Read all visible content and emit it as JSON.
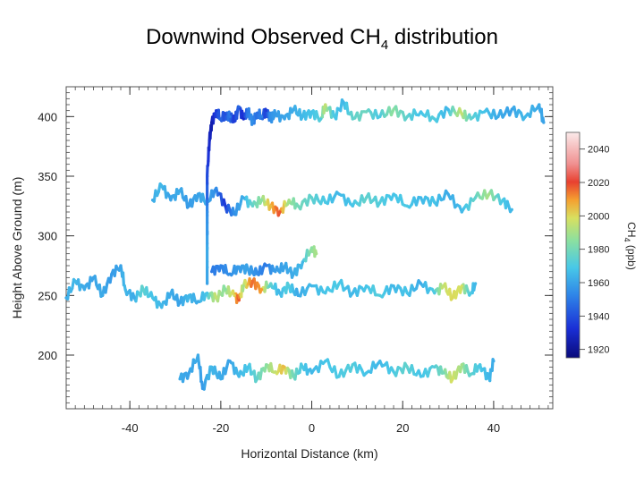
{
  "slide": {
    "title_main": "Downwind Observed CH",
    "title_sub": "4",
    "title_tail": " distribution"
  },
  "chart_data": {
    "type": "scatter",
    "title": "Downwind Observed CH4 distribution",
    "xlabel": "Horizontal Distance (km)",
    "ylabel": "Height Above Ground (m)",
    "xlim": [
      -54,
      53
    ],
    "ylim": [
      155,
      425
    ],
    "xticks": [
      -40,
      -20,
      0,
      20,
      40
    ],
    "yticks": [
      200,
      250,
      300,
      350,
      400
    ],
    "colorbar": {
      "label_main": "CH",
      "label_sub": "4",
      "label_tail": " (ppb)",
      "range": [
        1915,
        2050
      ],
      "ticks": [
        1920,
        1940,
        1960,
        1980,
        2000,
        2020,
        2040
      ]
    },
    "series": [
      {
        "name": "transect ~400 m",
        "points": [
          {
            "x": -22,
            "y": 395,
            "ch4": 1925
          },
          {
            "x": -21,
            "y": 405,
            "ch4": 1935
          },
          {
            "x": -20,
            "y": 398,
            "ch4": 1945
          },
          {
            "x": -19,
            "y": 402,
            "ch4": 1940
          },
          {
            "x": -18,
            "y": 400,
            "ch4": 1950
          },
          {
            "x": -17,
            "y": 396,
            "ch4": 1935
          },
          {
            "x": -16,
            "y": 408,
            "ch4": 1945
          },
          {
            "x": -15,
            "y": 398,
            "ch4": 1930
          },
          {
            "x": -14,
            "y": 404,
            "ch4": 1950
          },
          {
            "x": -13,
            "y": 396,
            "ch4": 1955
          },
          {
            "x": -12,
            "y": 403,
            "ch4": 1948
          },
          {
            "x": -11,
            "y": 400,
            "ch4": 1952
          },
          {
            "x": -10,
            "y": 405,
            "ch4": 1935
          },
          {
            "x": -9,
            "y": 398,
            "ch4": 1955
          },
          {
            "x": -8,
            "y": 402,
            "ch4": 1958
          },
          {
            "x": -6,
            "y": 398,
            "ch4": 1960
          },
          {
            "x": -4,
            "y": 406,
            "ch4": 1962
          },
          {
            "x": -2,
            "y": 400,
            "ch4": 1965
          },
          {
            "x": 0,
            "y": 404,
            "ch4": 1968
          },
          {
            "x": 2,
            "y": 398,
            "ch4": 1972
          },
          {
            "x": 3,
            "y": 410,
            "ch4": 1995
          },
          {
            "x": 5,
            "y": 400,
            "ch4": 1970
          },
          {
            "x": 7,
            "y": 412,
            "ch4": 1965
          },
          {
            "x": 9,
            "y": 398,
            "ch4": 1975
          },
          {
            "x": 12,
            "y": 404,
            "ch4": 1978
          },
          {
            "x": 15,
            "y": 400,
            "ch4": 1970
          },
          {
            "x": 18,
            "y": 406,
            "ch4": 1985
          },
          {
            "x": 21,
            "y": 400,
            "ch4": 1975
          },
          {
            "x": 24,
            "y": 404,
            "ch4": 1968
          },
          {
            "x": 27,
            "y": 398,
            "ch4": 1972
          },
          {
            "x": 30,
            "y": 406,
            "ch4": 1965
          },
          {
            "x": 33,
            "y": 402,
            "ch4": 1995
          },
          {
            "x": 35,
            "y": 398,
            "ch4": 1975
          },
          {
            "x": 38,
            "y": 404,
            "ch4": 1968
          },
          {
            "x": 41,
            "y": 400,
            "ch4": 1962
          },
          {
            "x": 44,
            "y": 406,
            "ch4": 1960
          },
          {
            "x": 47,
            "y": 400,
            "ch4": 1965
          },
          {
            "x": 50,
            "y": 410,
            "ch4": 1962
          },
          {
            "x": 51,
            "y": 395,
            "ch4": 1960
          }
        ]
      },
      {
        "name": "transect ~330 m",
        "points": [
          {
            "x": -35,
            "y": 330,
            "ch4": 1962
          },
          {
            "x": -33,
            "y": 342,
            "ch4": 1965
          },
          {
            "x": -31,
            "y": 330,
            "ch4": 1960
          },
          {
            "x": -29,
            "y": 338,
            "ch4": 1962
          },
          {
            "x": -27,
            "y": 325,
            "ch4": 1958
          },
          {
            "x": -25,
            "y": 335,
            "ch4": 1960
          },
          {
            "x": -23,
            "y": 328,
            "ch4": 1962
          },
          {
            "x": -21,
            "y": 340,
            "ch4": 1955
          },
          {
            "x": -19,
            "y": 325,
            "ch4": 1935
          },
          {
            "x": -17,
            "y": 318,
            "ch4": 1955
          },
          {
            "x": -15,
            "y": 332,
            "ch4": 1962
          },
          {
            "x": -13,
            "y": 325,
            "ch4": 1975
          },
          {
            "x": -11,
            "y": 330,
            "ch4": 1985
          },
          {
            "x": -9,
            "y": 325,
            "ch4": 2005
          },
          {
            "x": -7,
            "y": 320,
            "ch4": 2018
          },
          {
            "x": -5,
            "y": 330,
            "ch4": 1990
          },
          {
            "x": -3,
            "y": 325,
            "ch4": 1980
          },
          {
            "x": 0,
            "y": 332,
            "ch4": 1975
          },
          {
            "x": 3,
            "y": 328,
            "ch4": 1970
          },
          {
            "x": 6,
            "y": 335,
            "ch4": 1965
          },
          {
            "x": 9,
            "y": 325,
            "ch4": 1968
          },
          {
            "x": 12,
            "y": 332,
            "ch4": 1975
          },
          {
            "x": 15,
            "y": 328,
            "ch4": 1972
          },
          {
            "x": 18,
            "y": 335,
            "ch4": 1968
          },
          {
            "x": 21,
            "y": 325,
            "ch4": 1970
          },
          {
            "x": 24,
            "y": 332,
            "ch4": 1965
          },
          {
            "x": 27,
            "y": 328,
            "ch4": 1968
          },
          {
            "x": 30,
            "y": 335,
            "ch4": 1962
          },
          {
            "x": 33,
            "y": 320,
            "ch4": 1965
          },
          {
            "x": 36,
            "y": 332,
            "ch4": 1975
          },
          {
            "x": 39,
            "y": 335,
            "ch4": 1990
          },
          {
            "x": 42,
            "y": 330,
            "ch4": 1970
          },
          {
            "x": 44,
            "y": 322,
            "ch4": 1965
          }
        ]
      },
      {
        "name": "transect ~270 m",
        "points": [
          {
            "x": -22,
            "y": 270,
            "ch4": 1950
          },
          {
            "x": -20,
            "y": 275,
            "ch4": 1952
          },
          {
            "x": -18,
            "y": 268,
            "ch4": 1955
          },
          {
            "x": -16,
            "y": 274,
            "ch4": 1958
          },
          {
            "x": -14,
            "y": 272,
            "ch4": 1960
          },
          {
            "x": -12,
            "y": 268,
            "ch4": 1955
          },
          {
            "x": -10,
            "y": 275,
            "ch4": 1950
          },
          {
            "x": -8,
            "y": 270,
            "ch4": 1958
          },
          {
            "x": -6,
            "y": 274,
            "ch4": 1960
          },
          {
            "x": -4,
            "y": 268,
            "ch4": 1962
          },
          {
            "x": -2,
            "y": 278,
            "ch4": 1965
          },
          {
            "x": 0,
            "y": 290,
            "ch4": 1985
          },
          {
            "x": 1,
            "y": 285,
            "ch4": 1990
          }
        ]
      },
      {
        "name": "transect ~255 m",
        "points": [
          {
            "x": -54,
            "y": 248,
            "ch4": 1962
          },
          {
            "x": -52,
            "y": 262,
            "ch4": 1965
          },
          {
            "x": -50,
            "y": 255,
            "ch4": 1962
          },
          {
            "x": -48,
            "y": 265,
            "ch4": 1960
          },
          {
            "x": -46,
            "y": 250,
            "ch4": 1962
          },
          {
            "x": -44,
            "y": 268,
            "ch4": 1958
          },
          {
            "x": -42,
            "y": 275,
            "ch4": 1960
          },
          {
            "x": -41,
            "y": 255,
            "ch4": 1965
          },
          {
            "x": -39,
            "y": 248,
            "ch4": 1962
          },
          {
            "x": -37,
            "y": 255,
            "ch4": 1975
          },
          {
            "x": -35,
            "y": 248,
            "ch4": 1968
          },
          {
            "x": -33,
            "y": 240,
            "ch4": 1965
          },
          {
            "x": -31,
            "y": 252,
            "ch4": 1962
          },
          {
            "x": -29,
            "y": 244,
            "ch4": 1960
          },
          {
            "x": -27,
            "y": 250,
            "ch4": 1965
          },
          {
            "x": -25,
            "y": 245,
            "ch4": 1962
          },
          {
            "x": -23,
            "y": 252,
            "ch4": 1968
          },
          {
            "x": -21,
            "y": 248,
            "ch4": 1995
          },
          {
            "x": -19,
            "y": 255,
            "ch4": 1985
          },
          {
            "x": -17,
            "y": 250,
            "ch4": 2000
          },
          {
            "x": -16,
            "y": 246,
            "ch4": 2018
          },
          {
            "x": -15,
            "y": 258,
            "ch4": 1990
          },
          {
            "x": -13,
            "y": 262,
            "ch4": 2015
          },
          {
            "x": -11,
            "y": 255,
            "ch4": 2010
          },
          {
            "x": -9,
            "y": 260,
            "ch4": 1975
          },
          {
            "x": -7,
            "y": 252,
            "ch4": 1965
          },
          {
            "x": -5,
            "y": 258,
            "ch4": 1972
          },
          {
            "x": -3,
            "y": 250,
            "ch4": 1962
          },
          {
            "x": 0,
            "y": 258,
            "ch4": 1965
          },
          {
            "x": 3,
            "y": 252,
            "ch4": 1968
          },
          {
            "x": 6,
            "y": 260,
            "ch4": 1970
          },
          {
            "x": 9,
            "y": 252,
            "ch4": 1965
          },
          {
            "x": 12,
            "y": 258,
            "ch4": 1968
          },
          {
            "x": 15,
            "y": 250,
            "ch4": 1972
          },
          {
            "x": 18,
            "y": 258,
            "ch4": 1965
          },
          {
            "x": 21,
            "y": 252,
            "ch4": 1968
          },
          {
            "x": 24,
            "y": 260,
            "ch4": 1962
          },
          {
            "x": 27,
            "y": 252,
            "ch4": 1970
          },
          {
            "x": 29,
            "y": 258,
            "ch4": 1995
          },
          {
            "x": 31,
            "y": 248,
            "ch4": 2000
          },
          {
            "x": 33,
            "y": 258,
            "ch4": 1998
          },
          {
            "x": 35,
            "y": 252,
            "ch4": 1970
          },
          {
            "x": 36,
            "y": 260,
            "ch4": 1965
          }
        ]
      },
      {
        "name": "transect ~190 m",
        "points": [
          {
            "x": -29,
            "y": 180,
            "ch4": 1962
          },
          {
            "x": -27,
            "y": 185,
            "ch4": 1960
          },
          {
            "x": -25,
            "y": 200,
            "ch4": 1962
          },
          {
            "x": -24,
            "y": 172,
            "ch4": 1958
          },
          {
            "x": -22,
            "y": 190,
            "ch4": 1965
          },
          {
            "x": -20,
            "y": 180,
            "ch4": 1962
          },
          {
            "x": -18,
            "y": 195,
            "ch4": 1960
          },
          {
            "x": -16,
            "y": 182,
            "ch4": 1965
          },
          {
            "x": -14,
            "y": 190,
            "ch4": 1968
          },
          {
            "x": -12,
            "y": 180,
            "ch4": 1975
          },
          {
            "x": -10,
            "y": 192,
            "ch4": 1985
          },
          {
            "x": -8,
            "y": 186,
            "ch4": 1995
          },
          {
            "x": -6,
            "y": 190,
            "ch4": 2005
          },
          {
            "x": -4,
            "y": 182,
            "ch4": 1980
          },
          {
            "x": -2,
            "y": 190,
            "ch4": 1970
          },
          {
            "x": 0,
            "y": 185,
            "ch4": 1965
          },
          {
            "x": 3,
            "y": 195,
            "ch4": 1968
          },
          {
            "x": 6,
            "y": 182,
            "ch4": 1970
          },
          {
            "x": 9,
            "y": 192,
            "ch4": 1972
          },
          {
            "x": 12,
            "y": 185,
            "ch4": 1968
          },
          {
            "x": 15,
            "y": 195,
            "ch4": 1965
          },
          {
            "x": 18,
            "y": 186,
            "ch4": 1970
          },
          {
            "x": 21,
            "y": 190,
            "ch4": 1975
          },
          {
            "x": 24,
            "y": 182,
            "ch4": 1968
          },
          {
            "x": 27,
            "y": 190,
            "ch4": 1972
          },
          {
            "x": 29,
            "y": 185,
            "ch4": 1980
          },
          {
            "x": 31,
            "y": 180,
            "ch4": 1998
          },
          {
            "x": 33,
            "y": 192,
            "ch4": 1990
          },
          {
            "x": 35,
            "y": 184,
            "ch4": 1975
          },
          {
            "x": 37,
            "y": 192,
            "ch4": 1970
          },
          {
            "x": 39,
            "y": 180,
            "ch4": 1965
          },
          {
            "x": 40,
            "y": 195,
            "ch4": 1962
          }
        ]
      },
      {
        "name": "ascent near x = -23 km",
        "points": [
          {
            "x": -23,
            "y": 260,
            "ch4": 1960
          },
          {
            "x": -23,
            "y": 290,
            "ch4": 1962
          },
          {
            "x": -23,
            "y": 320,
            "ch4": 1955
          },
          {
            "x": -23,
            "y": 350,
            "ch4": 1940
          },
          {
            "x": -22.5,
            "y": 380,
            "ch4": 1930
          },
          {
            "x": -22,
            "y": 395,
            "ch4": 1925
          }
        ]
      }
    ]
  }
}
